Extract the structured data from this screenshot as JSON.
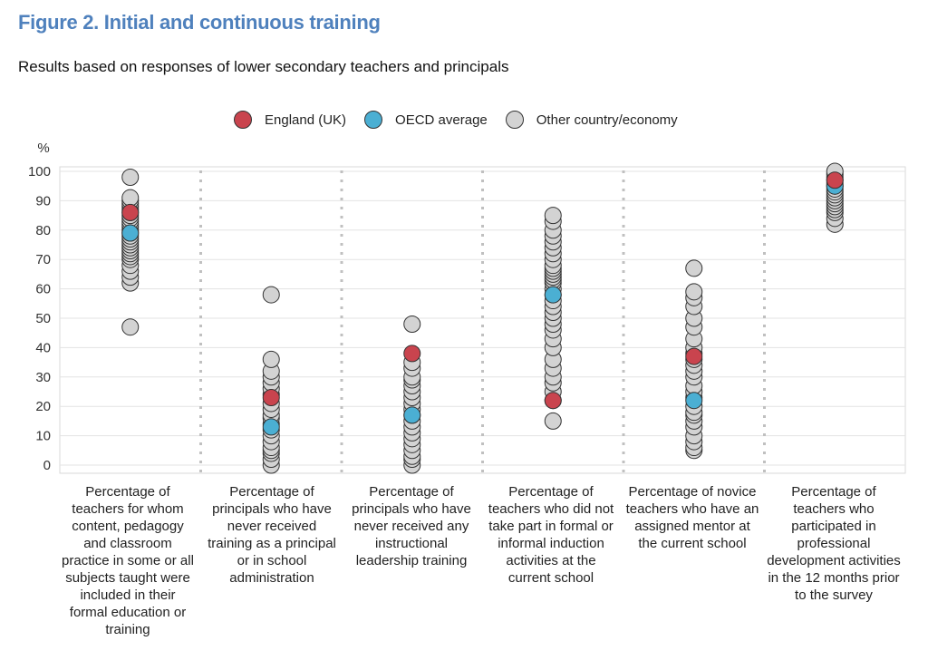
{
  "figure": {
    "title": "Figure 2. Initial and continuous training",
    "subtitle": "Results based on responses of lower secondary teachers and principals",
    "title_color": "#4f81bd"
  },
  "legend": {
    "items": [
      {
        "label": "England (UK)",
        "color": "#c9444e"
      },
      {
        "label": "OECD average",
        "color": "#4bafd3"
      },
      {
        "label": "Other country/economy",
        "color": "#d3d3d3"
      }
    ]
  },
  "chart_data": {
    "type": "scatter",
    "ylabel": "%",
    "ylim": [
      0,
      100
    ],
    "yticks": [
      0,
      10,
      20,
      30,
      40,
      50,
      60,
      70,
      80,
      90,
      100
    ],
    "grid": true,
    "legend_position": "top-center",
    "categories": [
      "Percentage of teachers for whom content, pedagogy and classroom practice in some or all subjects taught were included in their formal education or training",
      "Percentage of principals who have never received training as a principal or in school administration",
      "Percentage of principals who have never received any instructional leadership training",
      "Percentage of teachers who did not take part in formal or informal induction activities at the current school",
      "Percentage of novice teachers who have an assigned mentor at the current school",
      "Percentage of teachers who participated in professional development activities in the 12 months prior to the survey"
    ],
    "series": [
      {
        "name": "England (UK)",
        "color": "#c9444e",
        "values": [
          86,
          23,
          38,
          22,
          37,
          97
        ]
      },
      {
        "name": "OECD average",
        "color": "#4bafd3",
        "values": [
          79,
          13,
          17,
          58,
          22,
          95
        ]
      },
      {
        "name": "Other country/economy",
        "color": "#d3d3d3",
        "values": [
          [
            47,
            62,
            64,
            66,
            68,
            70,
            71,
            72,
            73,
            74,
            75,
            76,
            77,
            78,
            79,
            80,
            81,
            82,
            83,
            84,
            85,
            86,
            87,
            88,
            89,
            90,
            91,
            98
          ],
          [
            0,
            2,
            4,
            5,
            6,
            8,
            10,
            12,
            14,
            16,
            17,
            19,
            21,
            24,
            26,
            28,
            30,
            32,
            36,
            58
          ],
          [
            0,
            2,
            3,
            5,
            7,
            9,
            11,
            13,
            15,
            17,
            19,
            21,
            23,
            25,
            27,
            29,
            30,
            33,
            35,
            48
          ],
          [
            15,
            22,
            25,
            28,
            30,
            33,
            36,
            40,
            43,
            46,
            48,
            50,
            52,
            54,
            56,
            58,
            60,
            62,
            63,
            64,
            65,
            66,
            67,
            68,
            70,
            72,
            74,
            76,
            78,
            80,
            83,
            85
          ],
          [
            5,
            6,
            8,
            10,
            13,
            15,
            17,
            18,
            20,
            23,
            25,
            27,
            30,
            32,
            34,
            36,
            38,
            40,
            43,
            47,
            50,
            54,
            57,
            59,
            67
          ],
          [
            82,
            84,
            86,
            87,
            88,
            89,
            90,
            91,
            92,
            93,
            94,
            95,
            96,
            97,
            98,
            99,
            100
          ]
        ]
      }
    ]
  }
}
